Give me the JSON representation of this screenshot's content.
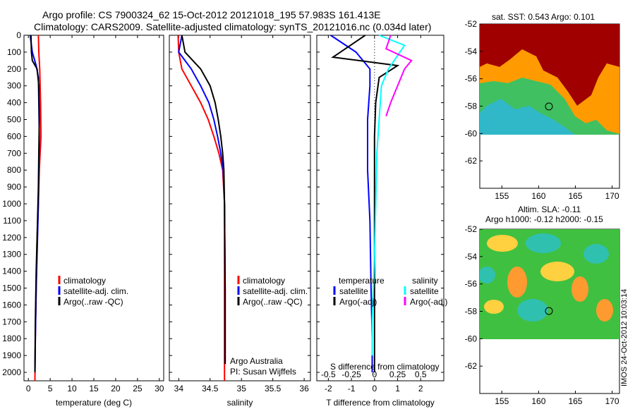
{
  "header": {
    "line1": "Argo profile: CS 7900324_62 15-Oct-2012 20121018_195 57.983S 161.413E",
    "line2": "Climatology: CARS2009. Satellite-adjusted climatology: synTS_20121016.nc (0.034d later)"
  },
  "colors": {
    "climatology": "#ff0000",
    "satellite_adj": "#0000ff",
    "argo": "#000000",
    "salinity_satellite": "#00ffff",
    "salinity_argo": "#ff00ff"
  },
  "panels": {
    "temperature": {
      "xlabel": "temperature (deg C)",
      "legend": [
        "climatology",
        "satellite-adj. clim.",
        "Argo(..raw -QC)"
      ]
    },
    "salinity": {
      "xlabel": "salinity",
      "legend": [
        "climatology",
        "satellite-adj. clim.",
        "Argo(..raw -QC)"
      ],
      "note1": "Argo Australia",
      "note2": "PI: Susan Wijffels"
    },
    "difference": {
      "xlabel": "T difference from climatology",
      "top_label": "S difference from climatology",
      "legend_titles": [
        "temperature",
        "salinity"
      ],
      "legend_temp": [
        "satellite",
        "Argo(-adj)"
      ],
      "legend_sal": [
        "satellite",
        "Argo(-adj)"
      ]
    },
    "sst_map": {
      "title": "sat. SST: 0.543  Argo: 0.101"
    },
    "sla_map": {
      "title1": "Altim. SLA: -0.11",
      "title2": "Argo h1000: -0.12 h2000: -0.15"
    },
    "credit": "IMOS 24-Oct-2012 10:03:14"
  },
  "chart_data": [
    {
      "type": "line",
      "panel": "temperature",
      "xlabel": "temperature (deg C)",
      "ylabel": "",
      "xlim": [
        -1,
        31
      ],
      "ylim": [
        2050,
        0
      ],
      "xticks": [
        0,
        5,
        10,
        15,
        20,
        25,
        30
      ],
      "yticks": [
        0,
        100,
        200,
        300,
        400,
        500,
        600,
        700,
        800,
        900,
        1000,
        1100,
        1200,
        1300,
        1400,
        1500,
        1600,
        1700,
        1800,
        1900,
        2000
      ],
      "series": [
        {
          "name": "climatology",
          "color": "#ff0000",
          "x": [
            2.3,
            2.4,
            2.6,
            2.7,
            2.8,
            2.9,
            2.5,
            2.3,
            2.0,
            1.8,
            1.6,
            1.5
          ],
          "y": [
            0,
            100,
            200,
            300,
            400,
            600,
            800,
            1000,
            1200,
            1500,
            1800,
            2050
          ]
        },
        {
          "name": "satellite-adj. clim.",
          "color": "#0000ff",
          "x": [
            0.4,
            0.9,
            1.8,
            2.3,
            2.4,
            2.5,
            2.4,
            2.3,
            2.1,
            1.8,
            1.6,
            1.5
          ],
          "y": [
            0,
            100,
            180,
            250,
            400,
            600,
            800,
            1000,
            1200,
            1500,
            1800,
            2000
          ]
        },
        {
          "name": "Argo(..raw -QC)",
          "color": "#000000",
          "x": [
            0.6,
            0.7,
            0.9,
            2.0,
            2.4,
            2.5,
            2.4,
            2.3,
            2.1,
            1.8,
            1.6,
            1.5
          ],
          "y": [
            0,
            100,
            150,
            200,
            300,
            500,
            700,
            900,
            1100,
            1400,
            1700,
            2000
          ]
        }
      ]
    },
    {
      "type": "line",
      "panel": "salinity",
      "xlabel": "salinity",
      "xlim": [
        33.85,
        36.1
      ],
      "ylim": [
        2050,
        0
      ],
      "xticks": [
        34,
        34.5,
        35,
        35.5,
        36
      ],
      "series": [
        {
          "name": "climatology",
          "color": "#ff0000",
          "x": [
            33.99,
            34.0,
            34.05,
            34.2,
            34.35,
            34.47,
            34.56,
            34.64,
            34.7,
            34.73,
            34.73,
            34.73
          ],
          "y": [
            0,
            100,
            200,
            300,
            400,
            500,
            600,
            700,
            800,
            1000,
            1500,
            2050
          ]
        },
        {
          "name": "satellite-adj. clim.",
          "color": "#0000ff",
          "x": [
            34.05,
            34.0,
            34.2,
            34.35,
            34.48,
            34.56,
            34.62,
            34.67,
            34.71,
            34.73,
            34.74,
            34.74
          ],
          "y": [
            0,
            100,
            200,
            300,
            400,
            500,
            600,
            700,
            800,
            1000,
            1500,
            1950
          ]
        },
        {
          "name": "Argo(..raw -QC)",
          "color": "#000000",
          "x": [
            34.05,
            34.1,
            34.35,
            34.5,
            34.58,
            34.63,
            34.67,
            34.7,
            34.72,
            34.73,
            34.74,
            34.74
          ],
          "y": [
            0,
            100,
            200,
            300,
            400,
            500,
            600,
            700,
            800,
            1000,
            1500,
            1950
          ]
        }
      ]
    },
    {
      "type": "line",
      "panel": "difference",
      "xlabel": "T difference from climatology",
      "xlim": [
        -2.5,
        3
      ],
      "ylim": [
        2050,
        0
      ],
      "xticks": [
        -2,
        -1,
        0,
        1,
        2
      ],
      "top_xticks": [
        "-0.5",
        "-0.25",
        "0",
        "0.25",
        "0.5"
      ],
      "series": [
        {
          "name": "temperature satellite",
          "color": "#0000ff",
          "x": [
            -1.9,
            -0.8,
            -0.2,
            -0.2,
            -0.3,
            -0.3,
            -0.2,
            -0.15,
            -0.1,
            -0.1
          ],
          "y": [
            0,
            100,
            200,
            300,
            500,
            800,
            1100,
            1500,
            1800,
            2000
          ]
        },
        {
          "name": "temperature Argo(-adj)",
          "color": "#000000",
          "x": [
            -0.4,
            -1.8,
            1.0,
            0.2,
            0.05,
            0.0,
            0.0,
            0.0,
            0.0,
            0.0
          ],
          "y": [
            0,
            130,
            180,
            250,
            400,
            600,
            900,
            1300,
            1700,
            2000
          ]
        },
        {
          "name": "salinity satellite",
          "color": "#00ffff",
          "x": [
            0.2,
            1.3,
            0.6,
            0.3,
            0.2,
            0.1,
            0.05,
            0.0,
            -0.1,
            -0.1
          ],
          "y": [
            0,
            60,
            200,
            300,
            500,
            700,
            1000,
            1300,
            1700,
            1900
          ]
        },
        {
          "name": "salinity Argo(-adj)",
          "color": "#ff00ff",
          "x": [
            0.7,
            0.5,
            1.6,
            1.3,
            1.0,
            0.7,
            0.5
          ],
          "y": [
            0,
            80,
            150,
            200,
            300,
            400,
            480
          ]
        }
      ]
    },
    {
      "type": "heatmap",
      "panel": "sst_map",
      "title": "sat. SST: 0.543  Argo: 0.101",
      "xlim": [
        152,
        171
      ],
      "ylim": [
        -64,
        -52
      ],
      "xticks": [
        155,
        160,
        165,
        170
      ],
      "yticks": [
        -52,
        -54,
        -56,
        -58,
        -60,
        -62
      ],
      "marker": {
        "lon": 161.4,
        "lat": -58.0
      }
    },
    {
      "type": "heatmap",
      "panel": "sla_map",
      "title": "Altim. SLA: -0.11  Argo h1000: -0.12 h2000: -0.15",
      "xlim": [
        152,
        171
      ],
      "ylim": [
        -64,
        -52
      ],
      "xticks": [
        155,
        160,
        165,
        170
      ],
      "yticks": [
        -52,
        -54,
        -56,
        -58,
        -60,
        -62
      ],
      "marker": {
        "lon": 161.4,
        "lat": -58.0
      }
    }
  ]
}
